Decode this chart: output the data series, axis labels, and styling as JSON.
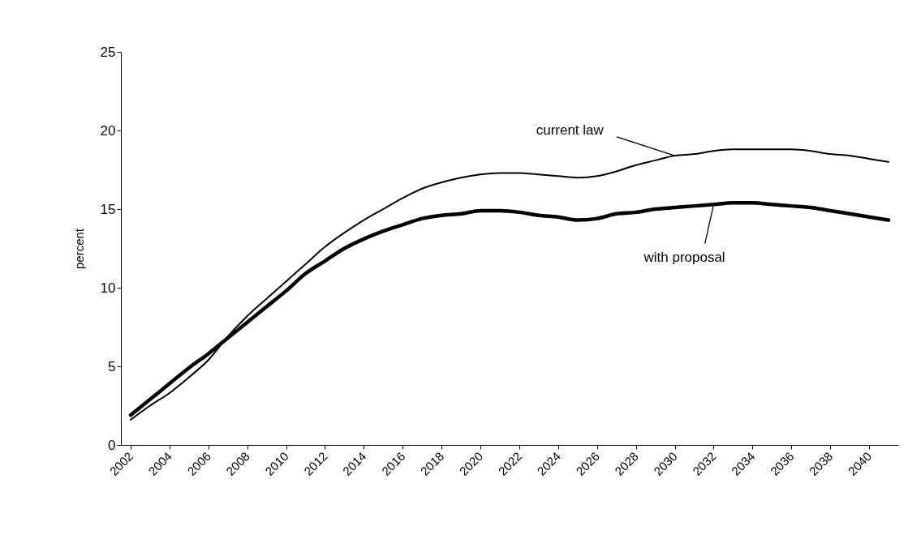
{
  "chart_data": {
    "type": "line",
    "ylabel": "percent",
    "categories": [
      "2002",
      null,
      "2004",
      null,
      "2006",
      null,
      "2008",
      null,
      "2010",
      null,
      "2012",
      null,
      "2014",
      null,
      "2016",
      null,
      "2018",
      null,
      "2020",
      null,
      "2022",
      null,
      "2024",
      null,
      "2026",
      null,
      "2028",
      null,
      "2030",
      null,
      "2032",
      null,
      "2034",
      null,
      "2036",
      null,
      "2038",
      null,
      "2040",
      null
    ],
    "series": [
      {
        "color": "#000000",
        "values": [
          1.6,
          2.5,
          3.3,
          4.3,
          5.4,
          6.9,
          8.2,
          9.3,
          10.4,
          11.5,
          12.6,
          13.5,
          14.3,
          15.0,
          15.7,
          16.3,
          16.7,
          17.0,
          17.2,
          17.3,
          17.3,
          17.2,
          17.1,
          17.0,
          17.1,
          17.4,
          17.8,
          18.1,
          18.4,
          18.5,
          18.7,
          18.8,
          18.8,
          18.8,
          18.8,
          18.7,
          18.5,
          18.4,
          18.2,
          18.0
        ]
      },
      {
        "color": "#000000",
        "values": [
          1.9,
          2.9,
          3.9,
          4.9,
          5.8,
          6.8,
          7.8,
          8.8,
          9.8,
          10.9,
          11.7,
          12.5,
          13.1,
          13.6,
          14.0,
          14.4,
          14.6,
          14.7,
          14.9,
          14.9,
          14.8,
          14.6,
          14.5,
          14.3,
          14.4,
          14.7,
          14.8,
          15.0,
          15.1,
          15.2,
          15.3,
          15.4,
          15.4,
          15.3,
          15.2,
          15.1,
          14.9,
          14.7,
          14.5,
          14.3
        ]
      }
    ],
    "ylim": [
      0,
      25
    ],
    "yticks": [
      0,
      5,
      10,
      15,
      20,
      25
    ],
    "annotations": [
      {
        "text": "current law",
        "x": "2030",
        "y": 18.4
      },
      {
        "text": "with proposal",
        "x": "2032",
        "y": 15.3
      }
    ]
  }
}
